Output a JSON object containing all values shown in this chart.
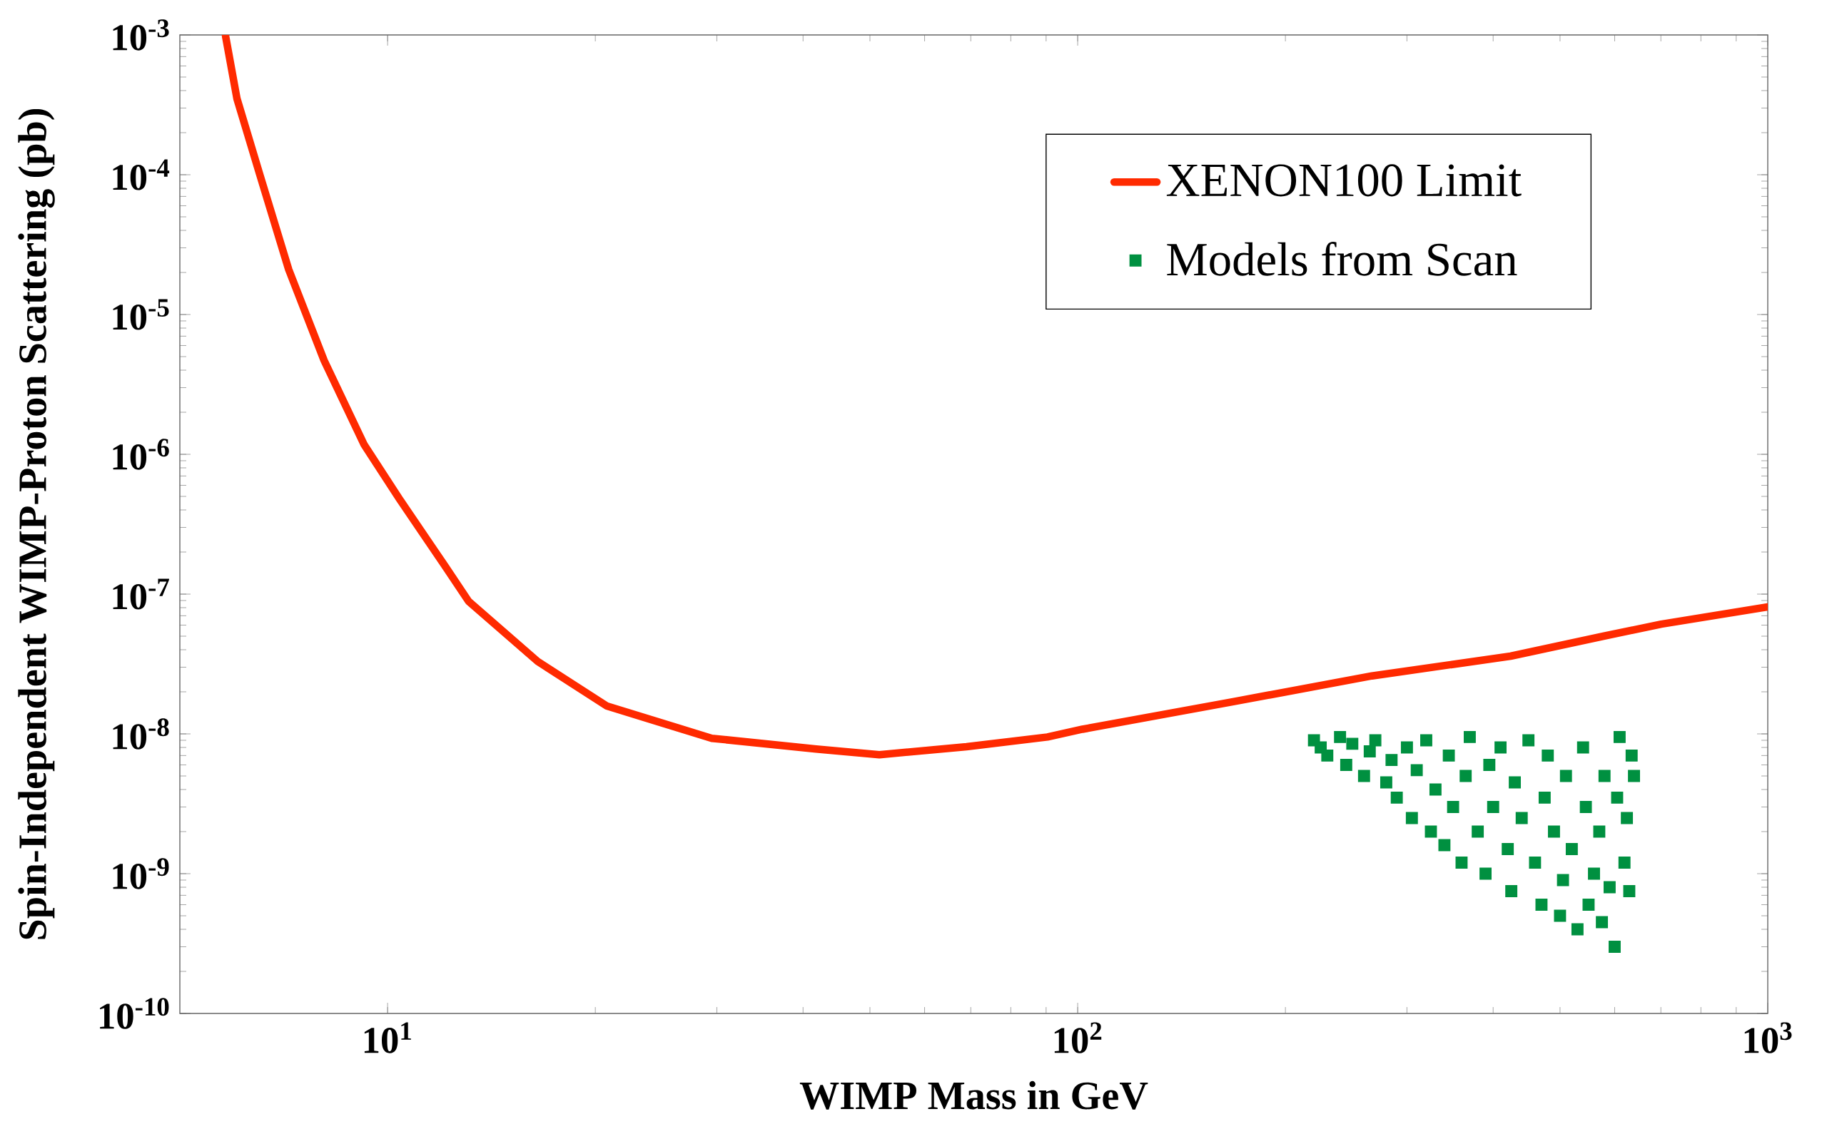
{
  "chart_data": {
    "type": "line",
    "xlabel": "WIMP Mass in GeV",
    "ylabel": "Spin-Independent WIMP-Proton Scattering (pb)",
    "log": "xy",
    "legend": "top right",
    "xlim": [
      5,
      1000
    ],
    "ylim": [
      1e-10,
      0.001
    ],
    "xticks": [
      {
        "value": 10,
        "label": "10$^{1}$"
      },
      {
        "value": 100,
        "label": "10$^{2}$"
      },
      {
        "value": 1000,
        "label": "10$^{3}$"
      }
    ],
    "yticks": [
      {
        "value": 1e-10,
        "label": "10$^{-10}$"
      },
      {
        "value": 1e-09,
        "label": "10$^{-9}$"
      },
      {
        "value": 1e-08,
        "label": "10$^{-8}$"
      },
      {
        "value": 1e-07,
        "label": "10$^{-7}$"
      },
      {
        "value": 1e-06,
        "label": "10$^{-6}$"
      },
      {
        "value": 1e-05,
        "label": "10$^{-5}$"
      },
      {
        "value": 0.0001,
        "label": "10$^{-4}$"
      },
      {
        "value": 0.001,
        "label": "10$^{-3}$"
      }
    ],
    "series": [
      {
        "name": "XENON100 Limit",
        "type": "line",
        "color": "#ff2a00",
        "marker": "none",
        "x": [
          5.82,
          6.05,
          6.53,
          7.19,
          8.09,
          9.25,
          10.4,
          12.1,
          13.1,
          16.5,
          20.8,
          29.5,
          41.8,
          51.6,
          69,
          90.4,
          101.6,
          168,
          267,
          424,
          578,
          701,
          1000
        ],
        "values": [
          0.001,
          0.00035,
          0.0001,
          2.1e-05,
          4.7e-06,
          1.17e-06,
          4.8e-07,
          1.6e-07,
          8.9e-08,
          3.3e-08,
          1.58e-08,
          9.3e-09,
          7.8e-09,
          7.1e-09,
          8.1e-09,
          9.5e-09,
          1.08e-08,
          1.7e-08,
          2.6e-08,
          3.6e-08,
          5e-08,
          6.1e-08,
          8.1e-08
        ]
      },
      {
        "name": "Models from Scan",
        "type": "scatter",
        "color": "#009040",
        "marker": "square",
        "x": [
          220,
          225,
          230,
          240,
          245,
          250,
          260,
          265,
          270,
          280,
          285,
          290,
          300,
          305,
          310,
          320,
          325,
          330,
          340,
          345,
          350,
          360,
          365,
          370,
          380,
          390,
          395,
          400,
          410,
          420,
          425,
          430,
          440,
          450,
          460,
          470,
          475,
          480,
          490,
          500,
          505,
          510,
          520,
          530,
          540,
          545,
          550,
          560,
          570,
          575,
          580,
          590,
          600,
          605,
          610,
          620,
          625,
          630,
          635,
          640
        ],
        "values": [
          9e-09,
          8e-09,
          7e-09,
          9.5e-09,
          6e-09,
          8.5e-09,
          5e-09,
          7.5e-09,
          9e-09,
          4.5e-09,
          6.5e-09,
          3.5e-09,
          8e-09,
          2.5e-09,
          5.5e-09,
          9e-09,
          2e-09,
          4e-09,
          1.6e-09,
          7e-09,
          3e-09,
          1.2e-09,
          5e-09,
          9.5e-09,
          2e-09,
          1e-09,
          6e-09,
          3e-09,
          8e-09,
          1.5e-09,
          7.5e-10,
          4.5e-09,
          2.5e-09,
          9e-09,
          1.2e-09,
          6e-10,
          3.5e-09,
          7e-09,
          2e-09,
          5e-10,
          9e-10,
          5e-09,
          1.5e-09,
          4e-10,
          8e-09,
          3e-09,
          6e-10,
          1e-09,
          2e-09,
          4.5e-10,
          5e-09,
          8e-10,
          3e-10,
          3.5e-09,
          9.5e-09,
          1.2e-09,
          2.5e-09,
          7.5e-10,
          7e-09,
          5e-09
        ]
      }
    ]
  }
}
